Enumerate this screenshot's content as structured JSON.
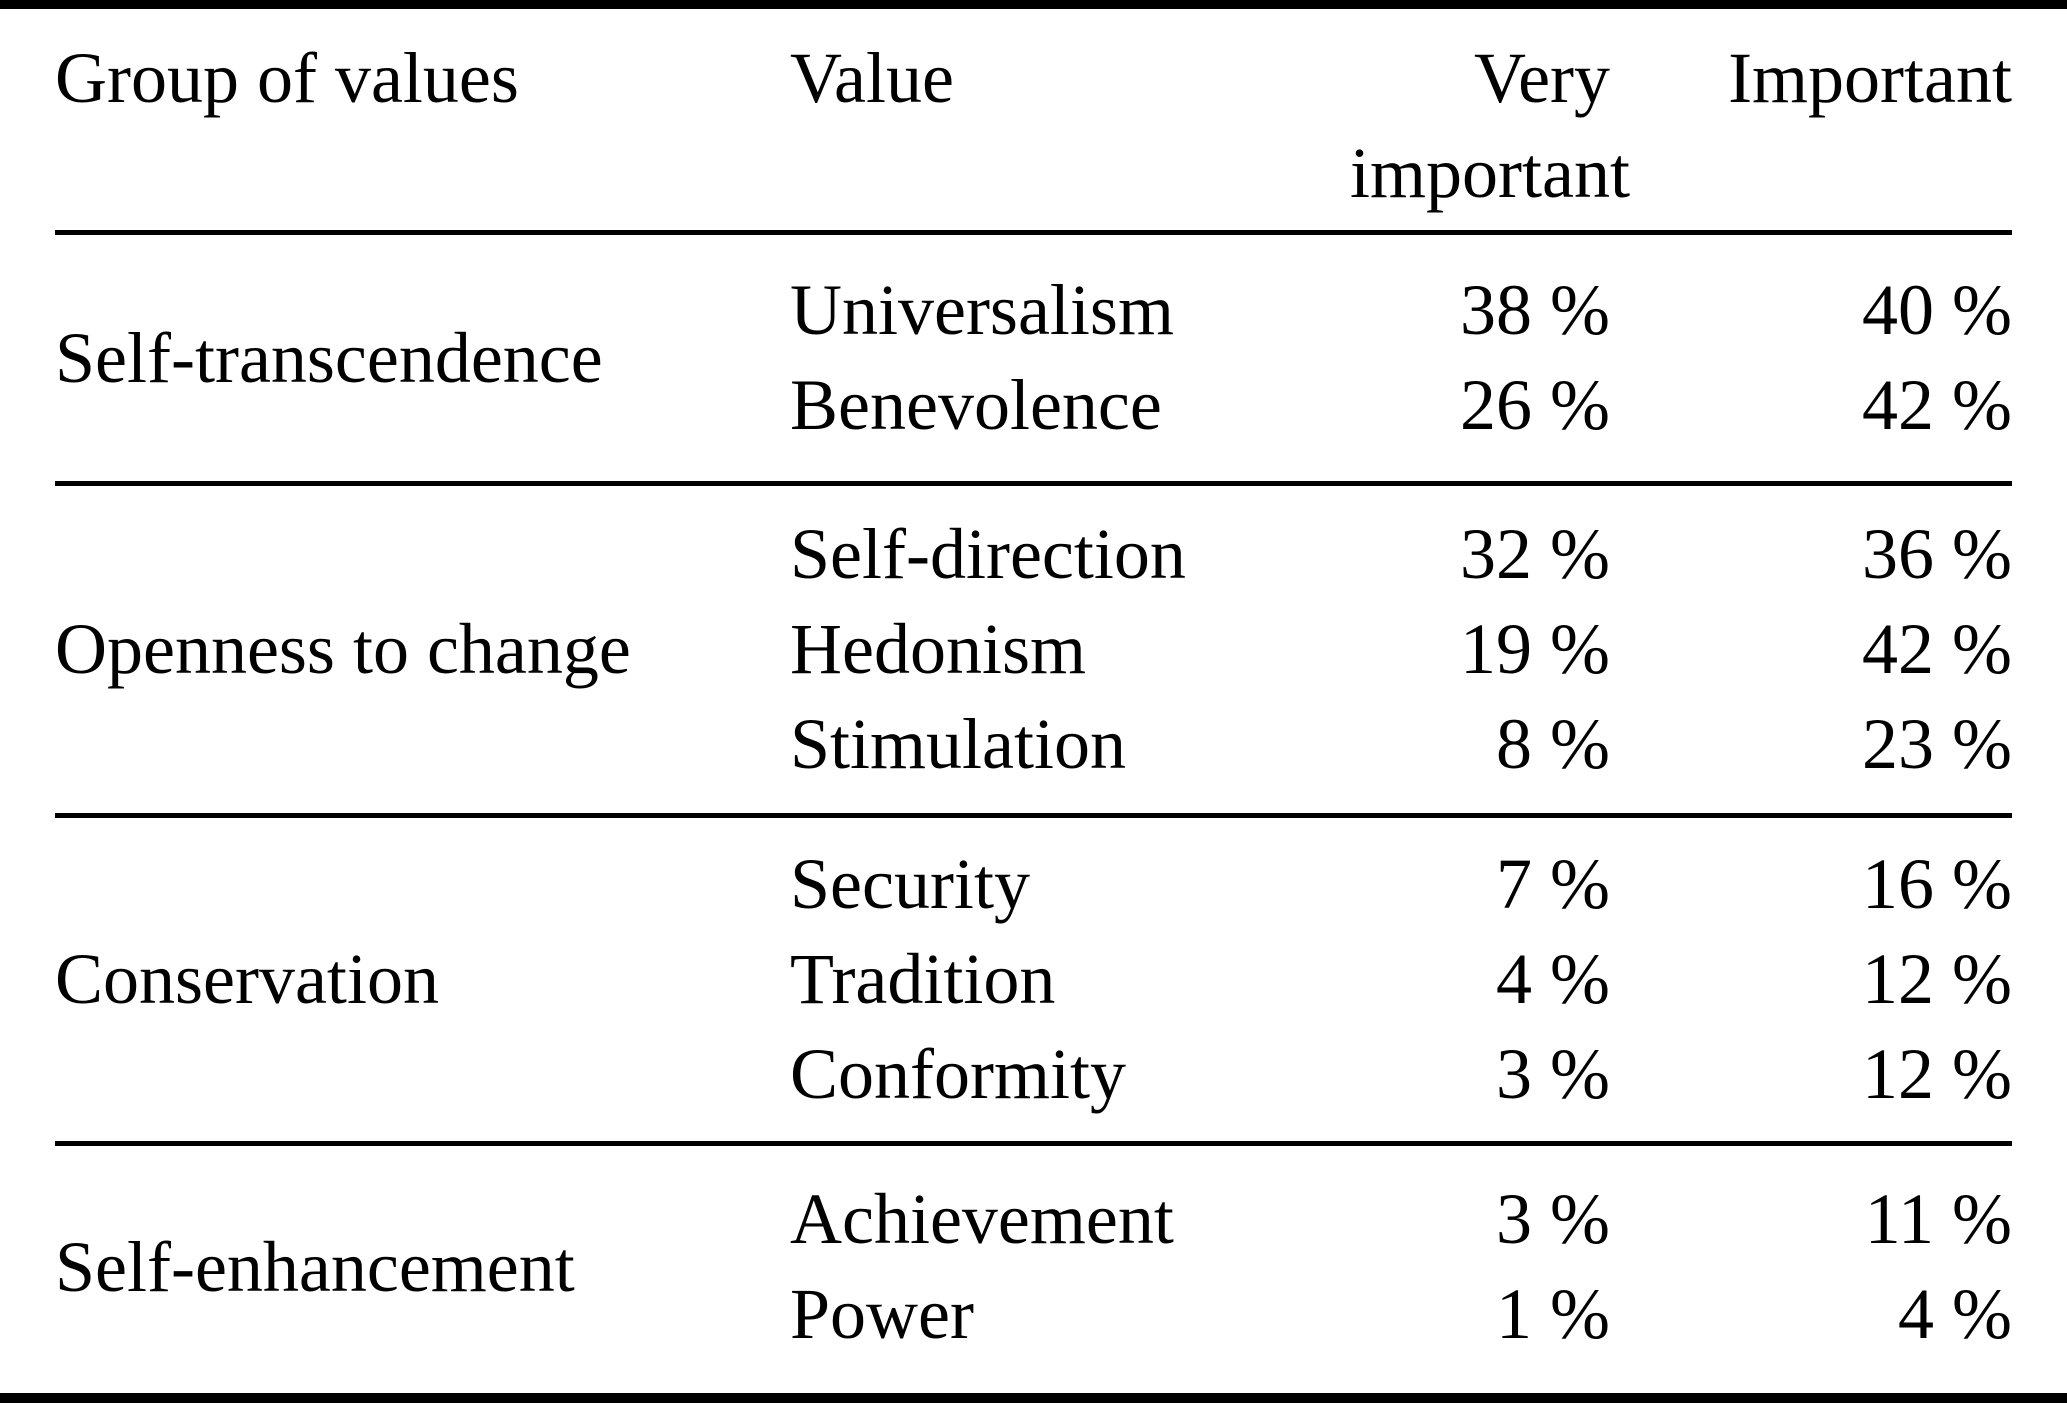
{
  "colors": {
    "text": "#000000",
    "background": "#ffffff",
    "rule": "#000000"
  },
  "table": {
    "header": {
      "group": "Group of values",
      "value": "Value",
      "very_important_line1": "Very",
      "very_important_line2": "important",
      "important": "Important"
    },
    "columns": [
      "Group of values",
      "Value",
      "Very important",
      "Important"
    ],
    "groups": [
      {
        "label": "Self-transcendence",
        "rows": [
          {
            "value": "Universalism",
            "very_important": "38 %",
            "important": "40 %"
          },
          {
            "value": "Benevolence",
            "very_important": "26 %",
            "important": "42 %"
          }
        ]
      },
      {
        "label": "Openness to change",
        "rows": [
          {
            "value": "Self-direction",
            "very_important": "32 %",
            "important": "36 %"
          },
          {
            "value": "Hedonism",
            "very_important": "19 %",
            "important": "42 %"
          },
          {
            "value": "Stimulation",
            "very_important": "8 %",
            "important": "23 %"
          }
        ]
      },
      {
        "label": "Conservation",
        "rows": [
          {
            "value": "Security",
            "very_important": "7 %",
            "important": "16 %"
          },
          {
            "value": "Tradition",
            "very_important": "4 %",
            "important": "12 %"
          },
          {
            "value": "Conformity",
            "very_important": "3 %",
            "important": "12 %"
          }
        ]
      },
      {
        "label": "Self-enhancement",
        "rows": [
          {
            "value": "Achievement",
            "very_important": "3 %",
            "important": "11 %"
          },
          {
            "value": "Power",
            "very_important": "1 %",
            "important": "4 %"
          }
        ]
      }
    ]
  }
}
